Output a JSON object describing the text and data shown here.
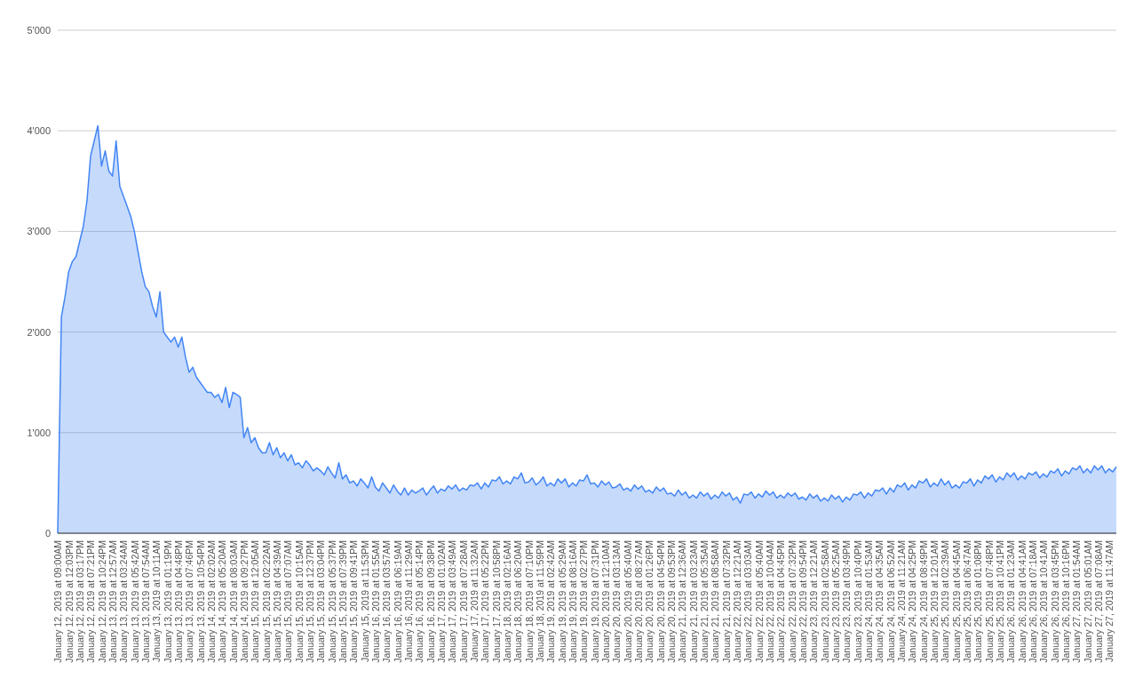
{
  "chart_data": {
    "type": "area",
    "color": "#4285f4",
    "ylim": [
      0,
      5000
    ],
    "yticks": [
      0,
      {
        "value": 1000,
        "label": "1'000"
      },
      {
        "value": 2000,
        "label": "2'000"
      },
      {
        "value": 3000,
        "label": "3'000"
      },
      {
        "value": 4000,
        "label": "4'000"
      },
      {
        "value": 5000,
        "label": "5'000"
      }
    ],
    "grid": "y",
    "legend": false,
    "categories": [
      "January 12, 2019 at 09:00AM",
      null,
      null,
      "January 12, 2019 at 12:03PM",
      null,
      null,
      "January 12, 2019 at 03:17PM",
      null,
      null,
      "January 12, 2019 at 07:21PM",
      null,
      null,
      "January 12, 2019 at 10:24PM",
      null,
      null,
      "January 13, 2019 at 12:57AM",
      null,
      null,
      "January 13, 2019 at 03:24AM",
      null,
      null,
      "January 13, 2019 at 05:42AM",
      null,
      null,
      "January 13, 2019 at 07:54AM",
      null,
      null,
      "January 13, 2019 at 10:11AM",
      null,
      null,
      "January 13, 2019 at 01:19PM",
      null,
      null,
      "January 13, 2019 at 04:48PM",
      null,
      null,
      "January 13, 2019 at 07:46PM",
      null,
      null,
      "January 13, 2019 at 10:54PM",
      null,
      null,
      "January 14, 2019 at 02:02AM",
      null,
      null,
      "January 14, 2019 at 05:20AM",
      null,
      null,
      "January 14, 2019 at 08:03AM",
      null,
      null,
      "January 14, 2019 at 09:27PM",
      null,
      null,
      "January 15, 2019 at 12:05AM",
      null,
      null,
      "January 15, 2019 at 02:22AM",
      null,
      null,
      "January 15, 2019 at 04:39AM",
      null,
      null,
      "January 15, 2019 at 07:07AM",
      null,
      null,
      "January 15, 2019 at 10:15AM",
      null,
      null,
      "January 15, 2019 at 12:37PM",
      null,
      null,
      "January 15, 2019 at 03:04PM",
      null,
      null,
      "January 15, 2019 at 05:37PM",
      null,
      null,
      "January 15, 2019 at 07:39PM",
      null,
      null,
      "January 15, 2019 at 09:41PM",
      null,
      null,
      "January 15, 2019 at 11:53PM",
      null,
      null,
      "January 16, 2019 at 01:55AM",
      null,
      null,
      "January 16, 2019 at 03:57AM",
      null,
      null,
      "January 16, 2019 at 06:19AM",
      null,
      null,
      "January 16, 2019 at 11:29AM",
      null,
      null,
      "January 16, 2019 at 05:14PM",
      null,
      null,
      "January 16, 2019 at 09:38PM",
      null,
      null,
      "January 17, 2019 at 01:02AM",
      null,
      null,
      "January 17, 2019 at 03:49AM",
      null,
      null,
      "January 17, 2019 at 07:28AM",
      null,
      null,
      "January 17, 2019 at 11:32AM",
      null,
      null,
      "January 17, 2019 at 05:22PM",
      null,
      null,
      "January 17, 2019 at 10:58PM",
      null,
      null,
      "January 18, 2019 at 02:16AM",
      null,
      null,
      "January 18, 2019 at 06:20AM",
      null,
      null,
      "January 18, 2019 at 07:10PM",
      null,
      null,
      "January 18, 2019 at 11:59PM",
      null,
      null,
      "January 19, 2019 at 02:42AM",
      null,
      null,
      "January 19, 2019 at 05:29AM",
      null,
      null,
      "January 19, 2019 at 08:16AM",
      null,
      null,
      "January 19, 2019 at 02:27PM",
      null,
      null,
      "January 19, 2019 at 07:31PM",
      null,
      null,
      "January 20, 2019 at 12:10AM",
      null,
      null,
      "January 20, 2019 at 03:13AM",
      null,
      null,
      "January 20, 2019 at 05:40AM",
      null,
      null,
      "January 20, 2019 at 08:27AM",
      null,
      null,
      "January 20, 2019 at 01:26PM",
      null,
      null,
      "January 20, 2019 at 04:54PM",
      null,
      null,
      "January 20, 2019 at 09:53PM",
      null,
      null,
      "January 21, 2019 at 12:36AM",
      null,
      null,
      "January 21, 2019 at 03:23AM",
      null,
      null,
      "January 21, 2019 at 05:35AM",
      null,
      null,
      "January 21, 2019 at 08:58AM",
      null,
      null,
      "January 21, 2019 at 07:32PM",
      null,
      null,
      "January 22, 2019 at 12:21AM",
      null,
      null,
      "January 22, 2019 at 03:03AM",
      null,
      null,
      "January 22, 2019 at 05:40AM",
      null,
      null,
      "January 22, 2019 at 10:04AM",
      null,
      null,
      "January 22, 2019 at 04:45PM",
      null,
      null,
      "January 22, 2019 at 07:32PM",
      null,
      null,
      "January 22, 2019 at 09:54PM",
      null,
      null,
      "January 23, 2019 at 12:21AM",
      null,
      null,
      "January 23, 2019 at 02:58AM",
      null,
      null,
      "January 23, 2019 at 05:25AM",
      null,
      null,
      "January 23, 2019 at 03:49PM",
      null,
      null,
      "January 23, 2019 at 10:40PM",
      null,
      null,
      "January 24, 2019 at 01:53AM",
      null,
      null,
      "January 24, 2019 at 04:35AM",
      null,
      null,
      "January 24, 2019 at 06:52AM",
      null,
      null,
      "January 24, 2019 at 11:21AM",
      null,
      null,
      "January 24, 2019 at 04:25PM",
      null,
      null,
      "January 24, 2019 at 08:49PM",
      null,
      null,
      "January 25, 2019 at 12:01AM",
      null,
      null,
      "January 25, 2019 at 02:39AM",
      null,
      null,
      "January 25, 2019 at 04:45AM",
      null,
      null,
      "January 25, 2019 at 06:47AM",
      null,
      null,
      "January 25, 2019 at 01:08PM",
      null,
      null,
      "January 25, 2019 at 07:48PM",
      null,
      null,
      "January 25, 2019 at 10:41PM",
      null,
      null,
      "January 26, 2019 at 01:23AM",
      null,
      null,
      "January 26, 2019 at 04:41AM",
      null,
      null,
      "January 26, 2019 at 07:18AM",
      null,
      null,
      "January 26, 2019 at 10:41AM",
      null,
      null,
      "January 26, 2019 at 03:45PM",
      null,
      null,
      "January 26, 2019 at 10:16PM",
      null,
      null,
      "January 27, 2019 at 01:54AM",
      null,
      null,
      "January 27, 2019 at 05:01AM",
      null,
      null,
      "January 27, 2019 at 07:08AM",
      null,
      null,
      "January 27, 2019 at 11:47AM",
      null,
      null
    ],
    "values": [
      0,
      2150,
      2350,
      2600,
      2700,
      2750,
      2900,
      3050,
      3300,
      3750,
      3900,
      4050,
      3650,
      3800,
      3600,
      3550,
      3900,
      3450,
      3350,
      3250,
      3150,
      3000,
      2800,
      2600,
      2450,
      2400,
      2250,
      2150,
      2400,
      2000,
      1950,
      1900,
      1950,
      1850,
      1950,
      1750,
      1600,
      1650,
      1550,
      1500,
      1450,
      1400,
      1400,
      1350,
      1380,
      1300,
      1450,
      1250,
      1400,
      1380,
      1350,
      950,
      1050,
      900,
      950,
      850,
      800,
      800,
      900,
      780,
      850,
      750,
      800,
      720,
      780,
      680,
      700,
      650,
      720,
      680,
      620,
      650,
      620,
      580,
      660,
      600,
      550,
      700,
      540,
      580,
      500,
      520,
      470,
      540,
      500,
      450,
      560,
      460,
      420,
      500,
      450,
      400,
      480,
      420,
      380,
      450,
      380,
      430,
      400,
      420,
      450,
      380,
      430,
      470,
      400,
      440,
      420,
      470,
      440,
      480,
      420,
      450,
      430,
      480,
      470,
      500,
      440,
      500,
      460,
      530,
      520,
      560,
      490,
      520,
      490,
      560,
      540,
      600,
      500,
      510,
      550,
      480,
      510,
      560,
      470,
      500,
      470,
      540,
      500,
      540,
      460,
      500,
      470,
      530,
      520,
      580,
      490,
      500,
      460,
      520,
      480,
      510,
      450,
      460,
      490,
      430,
      450,
      420,
      480,
      440,
      470,
      410,
      430,
      400,
      460,
      420,
      450,
      390,
      400,
      370,
      430,
      380,
      410,
      350,
      380,
      350,
      410,
      370,
      400,
      340,
      380,
      350,
      410,
      370,
      400,
      330,
      360,
      300,
      390,
      380,
      410,
      350,
      390,
      360,
      420,
      380,
      410,
      350,
      380,
      350,
      400,
      370,
      400,
      340,
      360,
      330,
      390,
      350,
      380,
      320,
      350,
      320,
      380,
      340,
      370,
      310,
      360,
      330,
      390,
      380,
      410,
      350,
      400,
      370,
      430,
      420,
      450,
      390,
      450,
      410,
      480,
      460,
      500,
      430,
      480,
      450,
      520,
      500,
      540,
      460,
      500,
      470,
      540,
      480,
      520,
      450,
      480,
      450,
      510,
      500,
      540,
      470,
      530,
      500,
      570,
      540,
      580,
      510,
      560,
      530,
      600,
      560,
      600,
      530,
      570,
      540,
      600,
      580,
      610,
      550,
      590,
      560,
      620,
      600,
      640,
      570,
      620,
      590,
      650,
      630,
      670,
      600,
      640,
      600,
      670,
      630,
      670,
      600,
      640,
      610,
      660
    ]
  }
}
